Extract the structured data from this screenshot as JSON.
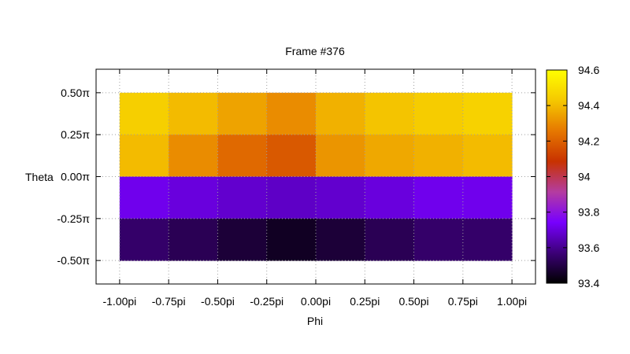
{
  "chart_data": {
    "type": "heatmap",
    "title": "Frame #376",
    "xlabel": "Phi",
    "ylabel": "Theta",
    "x_ticks": [
      {
        "value": -1.0,
        "label": "-1.00pi"
      },
      {
        "value": -0.75,
        "label": "-0.75pi"
      },
      {
        "value": -0.5,
        "label": "-0.50pi"
      },
      {
        "value": -0.25,
        "label": "-0.25pi"
      },
      {
        "value": 0.0,
        "label": "0.00pi"
      },
      {
        "value": 0.25,
        "label": "0.25pi"
      },
      {
        "value": 0.5,
        "label": "0.50pi"
      },
      {
        "value": 0.75,
        "label": "0.75pi"
      },
      {
        "value": 1.0,
        "label": "1.00pi"
      }
    ],
    "y_ticks": [
      {
        "value": 0.5,
        "label": "0.50π"
      },
      {
        "value": 0.25,
        "label": "0.25π"
      },
      {
        "value": 0.0,
        "label": "0.00π"
      },
      {
        "value": -0.25,
        "label": "-0.25π"
      },
      {
        "value": -0.5,
        "label": "-0.50π"
      }
    ],
    "xlim": [
      -1.12,
      1.12
    ],
    "ylim": [
      -0.64,
      0.64
    ],
    "grid": true,
    "colorbar": {
      "min": 93.4,
      "max": 94.6,
      "ticks": [
        {
          "value": 94.6,
          "label": "94.6"
        },
        {
          "value": 94.4,
          "label": "94.4"
        },
        {
          "value": 94.2,
          "label": "94.2"
        },
        {
          "value": 94.0,
          "label": "94"
        },
        {
          "value": 93.8,
          "label": "93.8"
        },
        {
          "value": 93.6,
          "label": "93.6"
        },
        {
          "value": 93.4,
          "label": "93.4"
        }
      ],
      "palette": [
        "#000000",
        "#3c0078",
        "#7800ff",
        "#b43ca0",
        "#c83200",
        "#e67800",
        "#f5c800",
        "#ffff00"
      ]
    },
    "x_cells": [
      -1.0,
      -0.75,
      -0.5,
      -0.25,
      0.0,
      0.25,
      0.5,
      0.75
    ],
    "x_cell_width": 0.25,
    "y_cells": [
      0.375,
      0.125,
      -0.125,
      -0.375
    ],
    "y_cell_height": 0.25,
    "values": [
      [
        94.45,
        94.4,
        94.35,
        94.3,
        94.38,
        94.42,
        94.44,
        94.46
      ],
      [
        94.4,
        94.3,
        94.22,
        94.18,
        94.32,
        94.36,
        94.38,
        94.4
      ],
      [
        93.72,
        93.7,
        93.68,
        93.67,
        93.68,
        93.7,
        93.72,
        93.72
      ],
      [
        93.55,
        93.52,
        93.48,
        93.45,
        93.48,
        93.52,
        93.55,
        93.55
      ]
    ]
  }
}
